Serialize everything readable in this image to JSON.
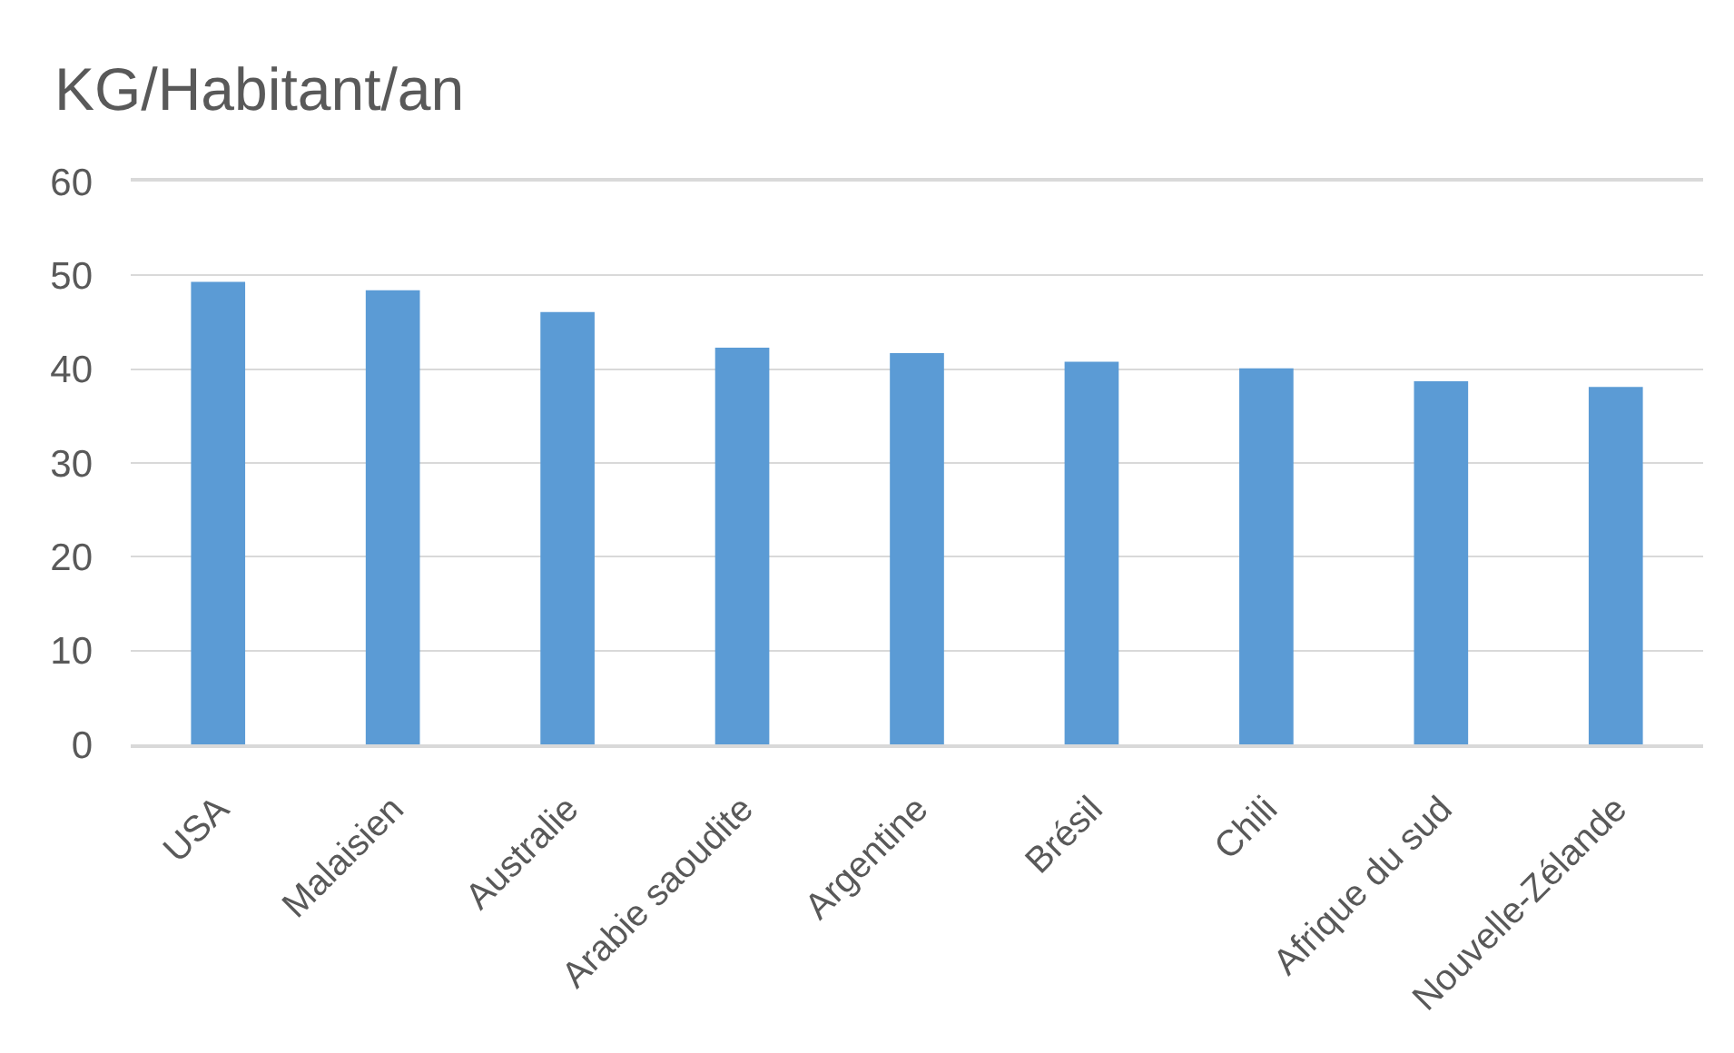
{
  "chart_data": {
    "type": "bar",
    "title": "KG/Habitant/an",
    "categories": [
      "USA",
      "Malaisien",
      "Australie",
      "Arabie saoudite",
      "Argentine",
      "Brésil",
      "Chili",
      "Afrique du sud",
      "Nouvelle-Zélande"
    ],
    "values": [
      49.3,
      48.4,
      46.1,
      42.3,
      41.7,
      40.8,
      40.1,
      38.7,
      38.1
    ],
    "color": "#5b9bd5",
    "ylim": [
      0,
      60
    ],
    "yticks": [
      0,
      10,
      20,
      30,
      40,
      50,
      60
    ],
    "grid": "y"
  }
}
